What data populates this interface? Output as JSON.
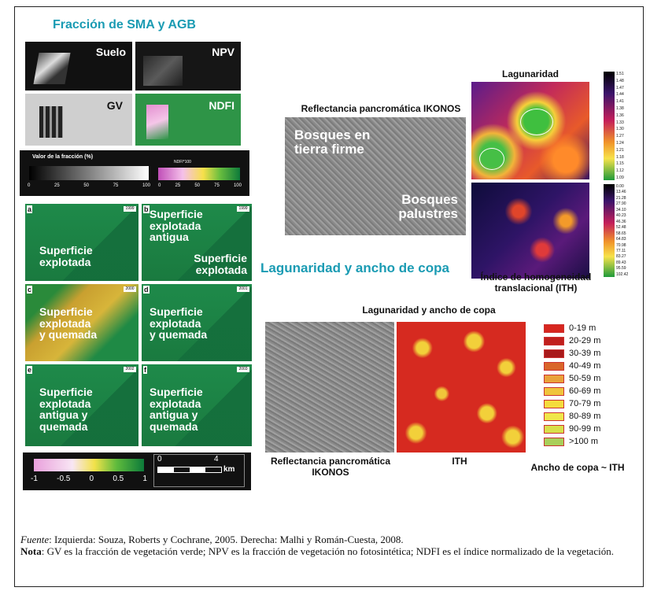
{
  "left_title": "Fracción de SMA y AGB",
  "fraction_tiles": [
    {
      "label": "Suelo"
    },
    {
      "label": "NPV"
    },
    {
      "label": "GV"
    },
    {
      "label": "NDFI"
    }
  ],
  "fraction_legend": {
    "title": "Valor de la fracción (%)",
    "ticks": [
      "0",
      "25",
      "50",
      "75",
      "100"
    ],
    "ndfi_title": "NDFI*100",
    "ndfi_ticks": [
      "0",
      "25",
      "50",
      "75",
      "100"
    ]
  },
  "panels": [
    {
      "letter": "a",
      "tag": "1999",
      "labels": [
        "Superficie",
        "explotada"
      ]
    },
    {
      "letter": "b",
      "tag": "1999",
      "labels": [
        "Superficie",
        "explotada",
        "antigua"
      ],
      "labels2": [
        "Superficie",
        "explotada"
      ]
    },
    {
      "letter": "c",
      "tag": "2000",
      "labels": [
        "Superficie",
        "explotada",
        "y quemada"
      ]
    },
    {
      "letter": "d",
      "tag": "2001",
      "labels": [
        "Superficie",
        "explotada",
        "y quemada"
      ]
    },
    {
      "letter": "e",
      "tag": "2002",
      "labels": [
        "Superficie",
        "explotada",
        "antigua y",
        "quemada"
      ]
    },
    {
      "letter": "f",
      "tag": "2003",
      "labels": [
        "Superficie",
        "explotada",
        "antigua y",
        "quemada"
      ]
    }
  ],
  "bottom_scale": {
    "ticks": [
      "-1",
      "-0.5",
      "0",
      "0.5",
      "1"
    ],
    "km_ticks": [
      "0",
      "4"
    ],
    "km_unit": "km"
  },
  "right_top": {
    "lagunaridad_label": "Lagunaridad",
    "ikonos_label": "Reflectancia pancromática IKONOS",
    "tierra_firme": [
      "Bosques en",
      "tierra firme"
    ],
    "palustres": [
      "Bosques",
      "palustres"
    ],
    "ith_label": [
      "Índice de homogeneidad",
      "translacional (ITH)"
    ],
    "lag_scale": [
      "1.51",
      "1.48",
      "1.47",
      "1.44",
      "1.41",
      "1.38",
      "1.36",
      "1.33",
      "1.30",
      "1.27",
      "1.24",
      "1.21",
      "1.18",
      "1.15",
      "1.12",
      "1.09"
    ],
    "ith_scale": [
      "0.00",
      "13.46",
      "21.28",
      "27.90",
      "34.10",
      "40.23",
      "46.36",
      "52.48",
      "58.65",
      "64.83",
      "70.98",
      "77.11",
      "83.27",
      "89.43",
      "95.59",
      "102.42"
    ]
  },
  "right_bottom": {
    "section_title": "Lagunaridad y ancho de copa",
    "sub_label": "Lagunaridad y ancho de copa",
    "ikonos_label": [
      "Reflectancia pancromática",
      "IKONOS"
    ],
    "ith_label": "ITH",
    "ancho_label": "Ancho de copa ~ ITH",
    "legend": [
      {
        "label": "0-19 m",
        "color": "#d7261e"
      },
      {
        "label": "20-29 m",
        "color": "#c01f1c"
      },
      {
        "label": "30-39 m",
        "color": "#a8191a"
      },
      {
        "label": "40-49 m",
        "color": "#d9662a"
      },
      {
        "label": "50-59 m",
        "color": "#e9a23a"
      },
      {
        "label": "60-69 m",
        "color": "#f0c43c"
      },
      {
        "label": "70-79 m",
        "color": "#f4dc3c"
      },
      {
        "label": "80-89 m",
        "color": "#f0e64a"
      },
      {
        "label": "90-99 m",
        "color": "#d8e04a"
      },
      {
        "label": ">100 m",
        "color": "#a9cf5a"
      }
    ]
  },
  "footer": {
    "fuente_key": "Fuente",
    "fuente_text": ": Izquierda: Souza, Roberts y Cochrane, 2005. Derecha: Malhi y Román-Cuesta, 2008.",
    "nota_key": "Nota",
    "nota_text": ": GV es la fracción de vegetación verde; NPV es la fracción de vegetación no fotosintética; NDFI es el índice normalizado de la vegetación."
  }
}
